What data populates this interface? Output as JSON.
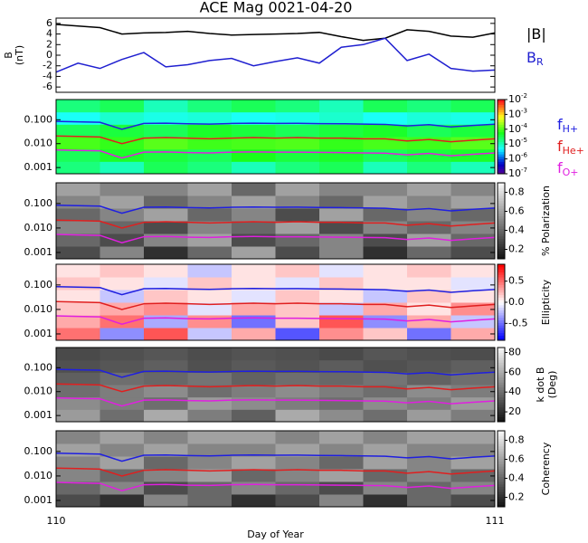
{
  "chart_data": [
    {
      "type": "line",
      "title": "ACE Mag 0021-04-20",
      "ylabel": [
        "B",
        "(nT)"
      ],
      "x": [
        110.0,
        110.05,
        110.1,
        110.15,
        110.2,
        110.25,
        110.3,
        110.35,
        110.4,
        110.45,
        110.5,
        110.55,
        110.6,
        110.65,
        110.7,
        110.75,
        110.8,
        110.85,
        110.9,
        110.95,
        111.0
      ],
      "xlim": [
        110,
        111
      ],
      "ylim": [
        -7,
        7
      ],
      "yticks": [
        -6,
        -4,
        -2,
        0,
        2,
        4,
        6
      ],
      "series": [
        {
          "name": "|B|",
          "color": "#000000",
          "values": [
            5.8,
            5.5,
            5.2,
            4.0,
            4.2,
            4.3,
            4.5,
            4.1,
            3.8,
            3.9,
            4.0,
            4.1,
            4.3,
            3.5,
            2.8,
            3.2,
            4.8,
            4.5,
            3.6,
            3.4,
            4.2
          ]
        },
        {
          "name": "B",
          "subscript": "R",
          "color": "#1f1fd0",
          "values": [
            -3.2,
            -1.5,
            -2.5,
            -0.8,
            0.5,
            -2.2,
            -1.8,
            -1.0,
            -0.6,
            -2.0,
            -1.2,
            -0.5,
            -1.5,
            1.5,
            2.0,
            3.2,
            -1.0,
            0.2,
            -2.5,
            -3.0,
            -2.8
          ]
        }
      ]
    },
    {
      "type": "spectrogram",
      "colormap": "rainbow",
      "zscale": "log",
      "xlim": [
        110,
        111
      ],
      "ylim": [
        0.00055,
        0.7
      ],
      "yscale": "log",
      "yticks": [
        0.001,
        {
          "value": 0.01,
          "label": "0.010"
        },
        {
          "value": 0.1,
          "label": "0.100"
        }
      ],
      "zlim": [
        1e-07,
        0.01
      ],
      "zticks": [
        {
          "value": 1e-07,
          "label": "10",
          "exponent": "-7"
        },
        {
          "value": 1e-06,
          "label": "10",
          "exponent": "-6"
        },
        {
          "value": 1e-05,
          "label": "10",
          "exponent": "-5"
        },
        {
          "value": 0.0001,
          "label": "10",
          "exponent": "-4"
        },
        {
          "value": 0.001,
          "label": "10",
          "exponent": "-3"
        },
        {
          "value": 0.01,
          "label": "10",
          "exponent": "-2"
        }
      ],
      "z": [
        [
          2e-05,
          1e-05,
          3e-05,
          2e-05,
          1e-05,
          2e-05,
          3e-05,
          1e-05,
          2e-05,
          1e-05
        ],
        [
          3e-05,
          5e-05,
          4e-05,
          3e-05,
          6e-05,
          4e-05,
          5e-05,
          3e-05,
          4e-05,
          5e-05
        ],
        [
          0.0001,
          8e-05,
          0.00012,
          9e-05,
          0.0001,
          0.00011,
          8e-05,
          0.0001,
          9e-05,
          0.00012
        ],
        [
          3e-05,
          4e-05,
          3e-05,
          5e-05,
          4e-05,
          3e-05,
          4e-05,
          5e-05,
          3e-05,
          4e-05
        ],
        [
          5e-06,
          8e-06,
          6e-06,
          7e-06,
          5e-06,
          6e-06,
          8e-06,
          5e-06,
          7e-06,
          6e-06
        ],
        [
          2e-05,
          3e-05,
          1e-05,
          2e-05,
          3e-05,
          2e-05,
          1e-05,
          3e-05,
          2e-05,
          3e-05
        ]
      ],
      "lines": {
        "x": [
          110.0,
          110.05,
          110.1,
          110.15,
          110.2,
          110.25,
          110.3,
          110.35,
          110.4,
          110.45,
          110.5,
          110.55,
          110.6,
          110.65,
          110.7,
          110.75,
          110.8,
          110.85,
          110.9,
          110.95,
          111.0
        ],
        "series": [
          {
            "name": "f",
            "subscript": "H+",
            "color": "#1f1fe0",
            "values": [
              0.085,
              0.082,
              0.078,
              0.04,
              0.07,
              0.072,
              0.068,
              0.066,
              0.07,
              0.072,
              0.07,
              0.071,
              0.069,
              0.068,
              0.066,
              0.064,
              0.055,
              0.062,
              0.05,
              0.058,
              0.065
            ]
          },
          {
            "name": "f",
            "subscript": "He+",
            "color": "#e01f1f",
            "values": [
              0.021,
              0.02,
              0.019,
              0.01,
              0.017,
              0.018,
              0.017,
              0.016,
              0.017,
              0.018,
              0.017,
              0.018,
              0.017,
              0.017,
              0.016,
              0.016,
              0.013,
              0.015,
              0.012,
              0.014,
              0.016
            ]
          },
          {
            "name": "f",
            "subscript": "O+",
            "color": "#e01fe0",
            "values": [
              0.0055,
              0.0052,
              0.005,
              0.0025,
              0.0044,
              0.0045,
              0.0042,
              0.0041,
              0.0044,
              0.0045,
              0.0044,
              0.0044,
              0.0043,
              0.0042,
              0.0041,
              0.004,
              0.0034,
              0.0039,
              0.0031,
              0.0036,
              0.0041
            ]
          }
        ]
      }
    },
    {
      "type": "spectrogram",
      "colormap": "gray",
      "zlabel": "% Polarization",
      "xlim": [
        110,
        111
      ],
      "ylim": [
        0.00055,
        0.7
      ],
      "yscale": "log",
      "yticks": [
        0.001,
        {
          "value": 0.01,
          "label": "0.010"
        },
        {
          "value": 0.1,
          "label": "0.100"
        }
      ],
      "zlim": [
        0.1,
        0.9
      ],
      "zticks": [
        0.2,
        0.4,
        0.6,
        0.8
      ],
      "z": [
        [
          0.3,
          0.5,
          0.2,
          0.4,
          0.6,
          0.3,
          0.5,
          0.2,
          0.4,
          0.3
        ],
        [
          0.4,
          0.3,
          0.5,
          0.6,
          0.3,
          0.4,
          0.5,
          0.3,
          0.6,
          0.4
        ],
        [
          0.5,
          0.4,
          0.3,
          0.5,
          0.4,
          0.6,
          0.3,
          0.5,
          0.4,
          0.5
        ],
        [
          0.4,
          0.5,
          0.6,
          0.4,
          0.5,
          0.3,
          0.6,
          0.4,
          0.5,
          0.4
        ],
        [
          0.5,
          0.6,
          0.4,
          0.5,
          0.6,
          0.5,
          0.4,
          0.6,
          0.5,
          0.6
        ],
        [
          0.6,
          0.5,
          0.5,
          0.6,
          0.4,
          0.6,
          0.5,
          0.5,
          0.6,
          0.5
        ]
      ]
    },
    {
      "type": "spectrogram",
      "colormap": "bwr",
      "zlabel": "Ellipticity",
      "xlim": [
        110,
        111
      ],
      "ylim": [
        0.00055,
        0.7
      ],
      "yscale": "log",
      "yticks": [
        0.001,
        {
          "value": 0.01,
          "label": "0.010"
        },
        {
          "value": 0.1,
          "label": "0.100"
        }
      ],
      "zlim": [
        -0.9,
        0.9
      ],
      "zticks": [
        -0.5,
        {
          "value": 0,
          "label": "0.0"
        },
        0.5
      ],
      "z": [
        [
          0.5,
          -0.4,
          0.6,
          -0.2,
          0.3,
          -0.6,
          0.4,
          0.2,
          -0.5,
          0.3
        ],
        [
          0.3,
          0.5,
          -0.3,
          0.4,
          -0.5,
          0.2,
          0.6,
          -0.4,
          0.3,
          -0.2
        ],
        [
          0.2,
          0.3,
          0.4,
          -0.1,
          0.3,
          0.2,
          -0.2,
          0.3,
          0.1,
          0.4
        ],
        [
          0.1,
          -0.2,
          0.2,
          0.1,
          -0.1,
          0.2,
          0.1,
          -0.2,
          0.2,
          0.1
        ],
        [
          0.2,
          0.1,
          -0.1,
          0.2,
          0.1,
          -0.1,
          0.2,
          0.1,
          0.1,
          -0.1
        ],
        [
          0.1,
          0.2,
          0.1,
          -0.2,
          0.1,
          0.2,
          -0.1,
          0.1,
          0.2,
          0.1
        ]
      ]
    },
    {
      "type": "spectrogram",
      "colormap": "gray",
      "zlabel": [
        "k dot B",
        "(Deg)"
      ],
      "xlim": [
        110,
        111
      ],
      "ylim": [
        0.00055,
        0.7
      ],
      "yscale": "log",
      "yticks": [
        0.001,
        {
          "value": 0.01,
          "label": "0.010"
        },
        {
          "value": 0.1,
          "label": "0.100"
        }
      ],
      "zlim": [
        10,
        85
      ],
      "zticks": [
        20,
        40,
        60,
        80
      ],
      "z": [
        [
          55,
          40,
          60,
          45,
          35,
          60,
          50,
          40,
          55,
          45
        ],
        [
          50,
          45,
          40,
          55,
          50,
          45,
          40,
          50,
          45,
          55
        ],
        [
          40,
          45,
          50,
          40,
          45,
          50,
          45,
          40,
          50,
          45
        ],
        [
          35,
          40,
          38,
          42,
          36,
          40,
          38,
          42,
          36,
          40
        ],
        [
          30,
          32,
          35,
          30,
          33,
          31,
          34,
          30,
          32,
          35
        ],
        [
          28,
          30,
          32,
          29,
          31,
          30,
          28,
          32,
          30,
          29
        ]
      ]
    },
    {
      "type": "spectrogram",
      "colormap": "gray",
      "zlabel": "Coherency",
      "xlim": [
        110,
        111
      ],
      "ylim": [
        0.00055,
        0.7
      ],
      "yscale": "log",
      "yticks": [
        0.001,
        {
          "value": 0.01,
          "label": "0.010"
        },
        {
          "value": 0.1,
          "label": "0.100"
        }
      ],
      "zlim": [
        0.1,
        0.9
      ],
      "zticks": [
        0.2,
        0.4,
        0.6,
        0.8
      ],
      "z": [
        [
          0.3,
          0.2,
          0.5,
          0.4,
          0.2,
          0.3,
          0.5,
          0.2,
          0.4,
          0.3
        ],
        [
          0.4,
          0.5,
          0.3,
          0.4,
          0.5,
          0.4,
          0.3,
          0.5,
          0.4,
          0.5
        ],
        [
          0.5,
          0.4,
          0.5,
          0.6,
          0.4,
          0.5,
          0.6,
          0.4,
          0.5,
          0.4
        ],
        [
          0.5,
          0.6,
          0.4,
          0.5,
          0.6,
          0.5,
          0.4,
          0.6,
          0.5,
          0.6
        ],
        [
          0.6,
          0.5,
          0.6,
          0.5,
          0.5,
          0.6,
          0.5,
          0.6,
          0.5,
          0.5
        ],
        [
          0.5,
          0.6,
          0.5,
          0.6,
          0.6,
          0.5,
          0.6,
          0.5,
          0.6,
          0.6
        ]
      ],
      "xticks": [
        110,
        111
      ],
      "xlabel": "Day of Year"
    }
  ]
}
